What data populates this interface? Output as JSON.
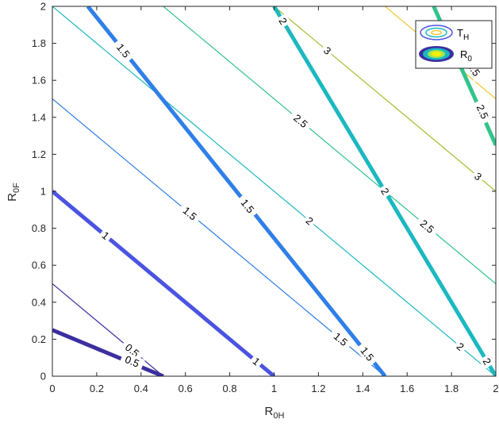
{
  "chart_data": {
    "type": "contour",
    "title": "",
    "xlabel": {
      "main": "R",
      "sub": "0H"
    },
    "ylabel": {
      "main": "R",
      "sub": "0F"
    },
    "xlim": [
      0,
      2
    ],
    "ylim": [
      0,
      2
    ],
    "x_ticks": [
      "0",
      "0.2",
      "0.4",
      "0.6",
      "0.8",
      "1",
      "1.2",
      "1.4",
      "1.6",
      "1.8",
      "2"
    ],
    "y_ticks": [
      "0",
      "0.2",
      "0.4",
      "0.6",
      "0.8",
      "1",
      "1.2",
      "1.4",
      "1.6",
      "1.8",
      "2"
    ],
    "grid": false,
    "legend_position": "top-right",
    "series": [
      {
        "name": "T_H",
        "legend_main": "T",
        "legend_sub": "H",
        "style": "thin",
        "levels": [
          {
            "value": 0.5,
            "label": "0.5",
            "color": "#3b2fa0",
            "segments": [
              [
                [
                  0,
                  0.5
                ],
                [
                  0.5,
                  0
                ]
              ]
            ],
            "labels_at": [
              [
                0.36,
                0.14
              ]
            ]
          },
          {
            "value": 1.5,
            "label": "1.5",
            "color": "#2f7fe8",
            "segments": [
              [
                [
                  0,
                  1.5
                ],
                [
                  1.5,
                  0
                ]
              ]
            ],
            "labels_at": [
              [
                0.62,
                0.88
              ],
              [
                1.3,
                0.2
              ]
            ]
          },
          {
            "value": 2,
            "label": "2",
            "color": "#1cb8c0",
            "segments": [
              [
                [
                  0,
                  2
                ],
                [
                  2,
                  0
                ]
              ]
            ],
            "labels_at": [
              [
                1.16,
                0.84
              ],
              [
                1.84,
                0.16
              ]
            ]
          },
          {
            "value": 2.5,
            "label": "2.5",
            "color": "#32c48a",
            "segments": [
              [
                [
                  0.5,
                  2
                ],
                [
                  2,
                  0.5
                ]
              ]
            ],
            "labels_at": [
              [
                1.12,
                1.38
              ],
              [
                1.69,
                0.81
              ]
            ]
          },
          {
            "value": 3,
            "label": "3",
            "color": "#a6bd2e",
            "segments": [
              [
                [
                  1,
                  2
                ],
                [
                  2,
                  1
                ]
              ]
            ],
            "labels_at": [
              [
                1.24,
                1.76
              ],
              [
                1.92,
                1.08
              ]
            ]
          },
          {
            "value": 3.5,
            "label": "3.5",
            "color": "#f0c632",
            "segments": [
              [
                [
                  1.5,
                  2
                ],
                [
                  2,
                  1.5
                ]
              ]
            ],
            "labels_at": []
          }
        ]
      },
      {
        "name": "R_0",
        "legend_main": "R",
        "legend_sub": "0",
        "style": "thick",
        "levels": [
          {
            "value": 0.5,
            "label": "0.5",
            "color": "#3b2fa0",
            "segments": [
              [
                [
                  0,
                  0.25
                ],
                [
                  0.5,
                  0
                ]
              ]
            ],
            "labels_at": [
              [
                0.36,
                0.08
              ]
            ]
          },
          {
            "value": 1,
            "label": "1",
            "color": "#4b53e2",
            "segments": [
              [
                [
                  0,
                  1
                ],
                [
                  1,
                  0
                ]
              ]
            ],
            "labels_at": [
              [
                0.24,
                0.76
              ],
              [
                0.92,
                0.08
              ]
            ]
          },
          {
            "value": 1.5,
            "label": "1.5",
            "color": "#2f7fe8",
            "segments": [
              [
                [
                  0.16,
                  2
                ],
                [
                  1.5,
                  0
                ]
              ]
            ],
            "labels_at": [
              [
                0.32,
                1.76
              ],
              [
                0.88,
                0.92
              ],
              [
                1.42,
                0.12
              ]
            ]
          },
          {
            "value": 2,
            "label": "2",
            "color": "#1cb8c0",
            "segments": [
              [
                [
                  1,
                  2
                ],
                [
                  2,
                  0
                ]
              ]
            ],
            "labels_at": [
              [
                1.04,
                1.92
              ],
              [
                1.5,
                1.0
              ],
              [
                1.96,
                0.08
              ]
            ]
          },
          {
            "value": 2.5,
            "label": "2.5",
            "color": "#32c48a",
            "segments": [
              [
                [
                  1.72,
                  2
                ],
                [
                  2,
                  1.25
                ]
              ]
            ],
            "labels_at": [
              [
                1.94,
                1.43
              ]
            ]
          },
          {
            "value": 3.5,
            "label": "3.5",
            "color": "#f0c632",
            "segments": [],
            "labels_at": [
              [
                1.9,
                1.66
              ]
            ]
          }
        ]
      }
    ]
  }
}
